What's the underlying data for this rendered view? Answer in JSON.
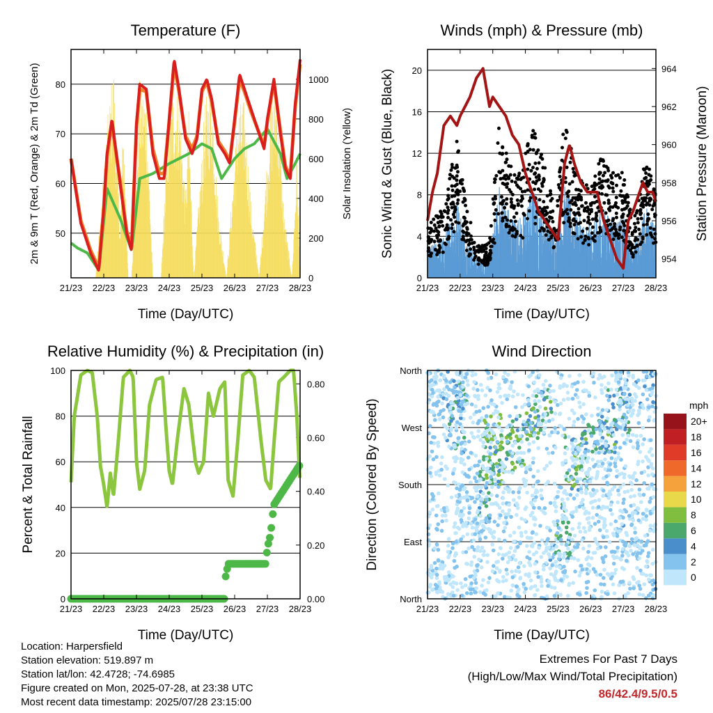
{
  "colors": {
    "t2m": "#d91e1e",
    "t9m": "#f07e2a",
    "dewpoint": "#4db848",
    "solar": "#f5dc5a",
    "wind": "#5b9bd5",
    "gust": "#000000",
    "pressure": "#a31515",
    "rh": "#8cc63f",
    "precip": "#4db848",
    "extremes": "#c0282b"
  },
  "time_ticks": [
    "21/23",
    "22/23",
    "23/23",
    "24/23",
    "25/23",
    "26/23",
    "27/23",
    "28/23"
  ],
  "info": {
    "location": "Location: Harpersfield",
    "elevation": "Station elevation: 519.897 m",
    "latlon": "Station lat/lon: 42.4728; -74.6985",
    "created": "Figure created on Mon, 2025-07-28, at 23:38 UTC",
    "recent": "Most recent data timestamp: 2025/07/28 23:15:00"
  },
  "extremes": {
    "title": "Extremes For Past 7 Days",
    "subtitle": "(High/Low/Max Wind/Total Precipitation)",
    "value": "86/42.4/9.5/0.5"
  },
  "chart_data": [
    {
      "type": "line",
      "title": "Temperature (F)",
      "xlabel": "Time (Day/UTC)",
      "ylabel": "2m & 9m T (Red, Orange) & 2m Td (Green)",
      "y2label": "Solar Insolation (Yellow)",
      "xlim": [
        0,
        7
      ],
      "ylim": [
        41,
        87
      ],
      "y2lim": [
        0,
        1150
      ],
      "yticks": [
        "50",
        "60",
        "70",
        "80"
      ],
      "y2ticks": [
        "0",
        "200",
        "400",
        "600",
        "800",
        "1000"
      ],
      "series": [
        {
          "name": "2m T",
          "x": [
            0,
            0.3,
            0.6,
            0.85,
            1.0,
            1.1,
            1.25,
            1.5,
            1.7,
            1.85,
            2.0,
            2.1,
            2.3,
            2.5,
            2.7,
            2.85,
            3.0,
            3.15,
            3.3,
            3.5,
            3.7,
            3.85,
            4.0,
            4.15,
            4.3,
            4.5,
            4.7,
            4.85,
            5.0,
            5.15,
            5.3,
            5.5,
            5.7,
            5.9,
            6.0,
            6.2,
            6.4,
            6.55,
            6.7,
            6.85,
            7.0
          ],
          "values": [
            65,
            52,
            46,
            42.4,
            55,
            66,
            73,
            60,
            50,
            46.5,
            72,
            80,
            79,
            66,
            61,
            61,
            73,
            85,
            79,
            69,
            66,
            69,
            79,
            81,
            77,
            68,
            66,
            64,
            73,
            82,
            79,
            75,
            71,
            67,
            73,
            81,
            70,
            63,
            61,
            76,
            85
          ]
        },
        {
          "name": "9m T",
          "x": [
            0,
            0.3,
            0.6,
            0.85,
            1.0,
            1.1,
            1.25,
            1.5,
            1.7,
            1.85,
            2.0,
            2.1,
            2.3,
            2.5,
            2.7,
            2.85,
            3.0,
            3.15,
            3.3,
            3.5,
            3.7,
            3.85,
            4.0,
            4.15,
            4.3,
            4.5,
            4.7,
            4.85,
            5.0,
            5.15,
            5.3,
            5.5,
            5.7,
            5.9,
            6.0,
            6.2,
            6.4,
            6.55,
            6.7,
            6.85,
            7.0
          ],
          "values": [
            65,
            52.5,
            46.5,
            43,
            55,
            65.5,
            72,
            60.5,
            50.5,
            47,
            71.5,
            79,
            78.5,
            67,
            62,
            62,
            72.5,
            84,
            78.5,
            69.5,
            67,
            69.5,
            78.5,
            80.5,
            76.5,
            68.5,
            66.5,
            64.5,
            72.5,
            81,
            78.5,
            74.5,
            71,
            67.5,
            72.5,
            80.5,
            70.5,
            63.5,
            61.5,
            75.5,
            84
          ]
        },
        {
          "name": "2m Td",
          "x": [
            0,
            0.2,
            0.5,
            0.85,
            1.1,
            1.5,
            1.85,
            2.1,
            2.5,
            3.0,
            3.3,
            3.6,
            4.0,
            4.3,
            4.6,
            5.0,
            5.3,
            5.6,
            6.0,
            6.4,
            6.6,
            6.85,
            7.0
          ],
          "values": [
            48,
            47,
            46,
            42.5,
            59,
            53,
            46.5,
            61,
            62,
            64,
            65,
            66,
            68,
            67,
            61,
            65,
            67,
            68,
            71,
            66,
            61,
            64,
            66
          ]
        },
        {
          "name": "Solar",
          "axis": "y2",
          "x": [
            0,
            0.75,
            1.1,
            1.3,
            1.5,
            1.6,
            1.75,
            1.85,
            2.1,
            2.3,
            2.5,
            2.75,
            2.95,
            3.1,
            3.3,
            3.5,
            3.6,
            3.75,
            4.1,
            4.3,
            4.5,
            4.75,
            5.1,
            5.3,
            5.5,
            5.75,
            6.1,
            6.3,
            6.5,
            6.75,
            6.9,
            7.0
          ],
          "values": [
            0,
            0,
            780,
            1100,
            250,
            850,
            0,
            0,
            1000,
            950,
            0,
            0,
            750,
            960,
            950,
            420,
            850,
            0,
            900,
            1000,
            350,
            0,
            880,
            900,
            380,
            0,
            900,
            1000,
            350,
            0,
            650,
            0
          ]
        }
      ]
    },
    {
      "type": "scatter",
      "title": "Winds (mph) & Pressure (mb)",
      "xlabel": "Time (Day/UTC)",
      "ylabel": "Sonic Wind & Gust (Blue, Black)",
      "y2label": "Station Pressure (Maroon)",
      "xlim": [
        0,
        7
      ],
      "ylim": [
        0,
        22
      ],
      "y2lim": [
        953,
        965
      ],
      "yticks": [
        "0",
        "4",
        "8",
        "12",
        "16",
        "20"
      ],
      "y2ticks": [
        "954",
        "956",
        "958",
        "960",
        "962",
        "964"
      ],
      "series": [
        {
          "name": "Station Pressure",
          "axis": "y2",
          "type": "line",
          "x": [
            0,
            0.15,
            0.3,
            0.5,
            0.7,
            0.9,
            1.0,
            1.15,
            1.3,
            1.5,
            1.7,
            1.9,
            2.0,
            2.2,
            2.4,
            2.6,
            2.8,
            3.0,
            3.2,
            3.4,
            3.6,
            3.8,
            4.0,
            4.1,
            4.2,
            4.35,
            4.5,
            4.7,
            4.9,
            5.0,
            5.2,
            5.4,
            5.6,
            5.8,
            6.0,
            6.15,
            6.3,
            6.5,
            6.6,
            6.75,
            6.9,
            7.0
          ],
          "values": [
            956,
            957.5,
            958.5,
            961,
            961.5,
            961,
            961.5,
            962,
            962.5,
            963.5,
            964,
            962,
            962.5,
            962,
            961.5,
            960.5,
            960,
            958.5,
            957.5,
            956.5,
            956,
            955.5,
            955,
            957,
            959,
            960,
            959,
            958,
            957.5,
            957.5,
            957.5,
            956,
            955,
            954,
            953.5,
            956,
            956.5,
            957.5,
            958,
            957.5,
            957.5,
            957
          ]
        },
        {
          "name": "Wind",
          "points": "dense"
        },
        {
          "name": "Gust",
          "points": "dense"
        }
      ]
    },
    {
      "type": "line",
      "title": "Relative Humidity (%) & Precipitation (in)",
      "xlabel": "Time (Day/UTC)",
      "ylabel": "Percent & Total Rainfall",
      "xlim": [
        0,
        7
      ],
      "ylim": [
        0,
        100
      ],
      "y2lim": [
        0,
        0.85
      ],
      "yticks": [
        "0",
        "20",
        "40",
        "60",
        "80",
        "100"
      ],
      "y2ticks": [
        "0.00",
        "0.20",
        "0.40",
        "0.60",
        "0.80"
      ],
      "series": [
        {
          "name": "RH",
          "x": [
            0,
            0.1,
            0.3,
            0.5,
            0.65,
            0.8,
            0.9,
            1.0,
            1.1,
            1.2,
            1.3,
            1.45,
            1.6,
            1.8,
            1.9,
            2.0,
            2.1,
            2.25,
            2.4,
            2.6,
            2.8,
            2.9,
            3.0,
            3.1,
            3.25,
            3.45,
            3.6,
            3.8,
            3.9,
            4.05,
            4.2,
            4.35,
            4.55,
            4.7,
            4.8,
            4.95,
            5.1,
            5.25,
            5.45,
            5.6,
            5.8,
            5.95,
            6.1,
            6.2,
            6.35,
            6.5,
            6.7,
            6.8,
            6.9,
            7.0
          ],
          "values": [
            51,
            80,
            98,
            100,
            99,
            80,
            58,
            50,
            40,
            55,
            45,
            70,
            97,
            100,
            97,
            60,
            48,
            56,
            85,
            96,
            97,
            75,
            56,
            50,
            70,
            92,
            85,
            60,
            55,
            60,
            90,
            80,
            92,
            95,
            52,
            45,
            70,
            98,
            100,
            97,
            70,
            52,
            48,
            68,
            95,
            97,
            100,
            100,
            80,
            50
          ]
        },
        {
          "name": "Total Rainfall",
          "axis": "y2",
          "x": [
            0,
            4.7,
            4.72,
            4.8,
            4.85,
            5.0,
            5.5,
            5.6,
            5.8,
            5.95,
            6.0,
            6.1,
            6.15,
            6.2,
            7.0
          ],
          "values": [
            0,
            0,
            0.08,
            0.13,
            0.13,
            0.13,
            0.13,
            0.13,
            0.13,
            0.13,
            0.19,
            0.24,
            0.3,
            0.35,
            0.5
          ]
        }
      ]
    },
    {
      "type": "scatter",
      "title": "Wind Direction",
      "xlabel": "Time (Day/UTC)",
      "ylabel": "Direction (Colored By Speed)",
      "xlim": [
        0,
        7
      ],
      "ylim": [
        0,
        360
      ],
      "yticks": [
        "North",
        "East",
        "South",
        "West",
        "North"
      ],
      "legend": {
        "title": "mph",
        "labels": [
          "0",
          "2",
          "4",
          "6",
          "8",
          "10",
          "12",
          "14",
          "16",
          "18",
          "20+"
        ],
        "colors": [
          "#bfe6fa",
          "#84c3ee",
          "#4a8fcb",
          "#4aa86c",
          "#7fbe3f",
          "#e8d94a",
          "#f5a23c",
          "#ef6a2a",
          "#e03a28",
          "#c01f24",
          "#96131c"
        ]
      }
    }
  ]
}
